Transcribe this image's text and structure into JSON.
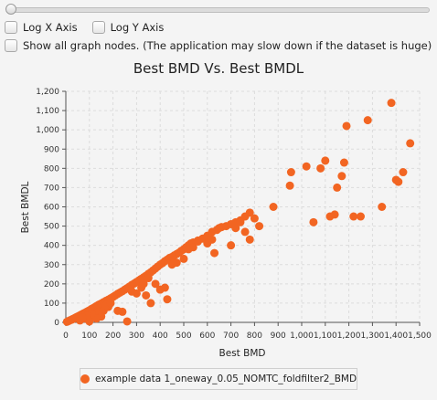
{
  "controls": {
    "slider": {
      "value": 0
    },
    "log_x_label": "Log X Axis",
    "log_y_label": "Log Y Axis",
    "show_all_label": "Show all graph nodes.  (The application may slow down if the dataset is huge)"
  },
  "colors": {
    "series": "#f26522",
    "grid": "#dcdcdc",
    "axis": "#555555"
  },
  "chart_data": {
    "type": "scatter",
    "title": "Best BMD Vs. Best BMDL",
    "xlabel": "Best BMD",
    "ylabel": "Best BMDL",
    "xlim": [
      0,
      1500
    ],
    "ylim": [
      0,
      1200
    ],
    "x_ticks": [
      "0",
      "100",
      "200",
      "300",
      "400",
      "500",
      "600",
      "700",
      "800",
      "900",
      "1,000",
      "1,100",
      "1,200",
      "1,300",
      "1,400",
      "1,500"
    ],
    "y_ticks": [
      "0",
      "100",
      "200",
      "300",
      "400",
      "500",
      "600",
      "700",
      "800",
      "900",
      "1,000",
      "1,100",
      "1,200"
    ],
    "grid": true,
    "legend_position": "bottom",
    "series": [
      {
        "name": "example data 1_oneway_0.05_NOMTC_foldfilter2_BMD",
        "points": [
          [
            5,
            3
          ],
          [
            10,
            6
          ],
          [
            15,
            9
          ],
          [
            20,
            12
          ],
          [
            25,
            14
          ],
          [
            30,
            18
          ],
          [
            35,
            20
          ],
          [
            40,
            24
          ],
          [
            45,
            27
          ],
          [
            50,
            30
          ],
          [
            55,
            33
          ],
          [
            60,
            36
          ],
          [
            65,
            40
          ],
          [
            70,
            43
          ],
          [
            75,
            46
          ],
          [
            80,
            49
          ],
          [
            85,
            52
          ],
          [
            90,
            56
          ],
          [
            95,
            59
          ],
          [
            100,
            62
          ],
          [
            105,
            66
          ],
          [
            110,
            70
          ],
          [
            115,
            73
          ],
          [
            120,
            77
          ],
          [
            125,
            80
          ],
          [
            130,
            84
          ],
          [
            135,
            88
          ],
          [
            140,
            92
          ],
          [
            150,
            98
          ],
          [
            160,
            105
          ],
          [
            170,
            112
          ],
          [
            180,
            118
          ],
          [
            190,
            125
          ],
          [
            200,
            132
          ],
          [
            60,
            10
          ],
          [
            80,
            20
          ],
          [
            100,
            30
          ],
          [
            120,
            40
          ],
          [
            140,
            55
          ],
          [
            160,
            60
          ],
          [
            180,
            80
          ],
          [
            100,
            5
          ],
          [
            150,
            30
          ],
          [
            130,
            20
          ],
          [
            110,
            45
          ],
          [
            90,
            35
          ],
          [
            70,
            25
          ],
          [
            170,
            90
          ],
          [
            190,
            100
          ],
          [
            210,
            140
          ],
          [
            220,
            148
          ],
          [
            230,
            155
          ],
          [
            240,
            162
          ],
          [
            250,
            170
          ],
          [
            260,
            178
          ],
          [
            270,
            186
          ],
          [
            280,
            195
          ],
          [
            290,
            202
          ],
          [
            300,
            210
          ],
          [
            310,
            218
          ],
          [
            320,
            226
          ],
          [
            330,
            234
          ],
          [
            340,
            242
          ],
          [
            350,
            252
          ],
          [
            360,
            260
          ],
          [
            370,
            270
          ],
          [
            380,
            280
          ],
          [
            390,
            290
          ],
          [
            400,
            300
          ],
          [
            410,
            308
          ],
          [
            420,
            318
          ],
          [
            430,
            326
          ],
          [
            440,
            335
          ],
          [
            450,
            340
          ],
          [
            460,
            348
          ],
          [
            470,
            355
          ],
          [
            480,
            362
          ],
          [
            490,
            372
          ],
          [
            500,
            380
          ],
          [
            510,
            390
          ],
          [
            520,
            400
          ],
          [
            530,
            410
          ],
          [
            540,
            415
          ],
          [
            560,
            425
          ],
          [
            580,
            435
          ],
          [
            600,
            450
          ],
          [
            620,
            470
          ],
          [
            640,
            480
          ],
          [
            650,
            490
          ],
          [
            660,
            495
          ],
          [
            680,
            500
          ],
          [
            700,
            510
          ],
          [
            720,
            520
          ],
          [
            740,
            530
          ],
          [
            760,
            550
          ],
          [
            780,
            570
          ],
          [
            220,
            60
          ],
          [
            240,
            55
          ],
          [
            260,
            5
          ],
          [
            280,
            160
          ],
          [
            300,
            150
          ],
          [
            320,
            180
          ],
          [
            340,
            140
          ],
          [
            360,
            100
          ],
          [
            380,
            200
          ],
          [
            400,
            170
          ],
          [
            420,
            180
          ],
          [
            430,
            120
          ],
          [
            330,
            200
          ],
          [
            350,
            230
          ],
          [
            450,
            300
          ],
          [
            470,
            310
          ],
          [
            500,
            330
          ],
          [
            520,
            380
          ],
          [
            540,
            390
          ],
          [
            560,
            420
          ],
          [
            600,
            410
          ],
          [
            620,
            430
          ],
          [
            630,
            360
          ],
          [
            700,
            400
          ],
          [
            720,
            490
          ],
          [
            740,
            520
          ],
          [
            760,
            470
          ],
          [
            780,
            430
          ],
          [
            800,
            540
          ],
          [
            820,
            500
          ],
          [
            880,
            600
          ],
          [
            950,
            710
          ],
          [
            955,
            780
          ],
          [
            1020,
            810
          ],
          [
            1050,
            520
          ],
          [
            1080,
            800
          ],
          [
            1100,
            840
          ],
          [
            1120,
            550
          ],
          [
            1140,
            560
          ],
          [
            1150,
            700
          ],
          [
            1170,
            760
          ],
          [
            1180,
            830
          ],
          [
            1190,
            1020
          ],
          [
            1220,
            550
          ],
          [
            1250,
            550
          ],
          [
            1280,
            1050
          ],
          [
            1340,
            600
          ],
          [
            1380,
            1140
          ],
          [
            1400,
            740
          ],
          [
            1410,
            730
          ],
          [
            1430,
            780
          ],
          [
            1460,
            930
          ]
        ]
      }
    ]
  }
}
